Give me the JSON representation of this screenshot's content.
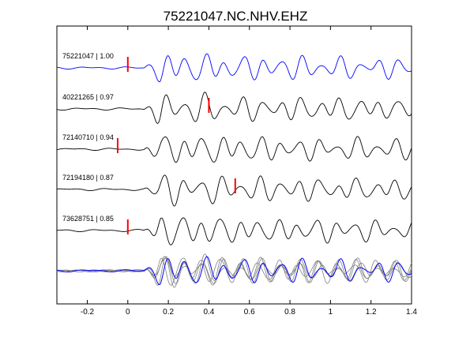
{
  "chart_data": {
    "type": "line",
    "title": "75221047.NC.NHV.EHZ",
    "xlabel": "",
    "ylabel": "",
    "xlim": [
      -0.35,
      1.4
    ],
    "xticks": [
      -0.2,
      0,
      0.2,
      0.4,
      0.6,
      0.8,
      1,
      1.2,
      1.4
    ],
    "xtick_labels": [
      "-0.2",
      "0",
      "0.2",
      "0.4",
      "0.6",
      "0.8",
      "1",
      "1.2",
      "1.4"
    ],
    "grid": false,
    "traces": [
      {
        "label": "75221047 | 1.00",
        "event_id": "75221047",
        "correlation": 1.0,
        "pick_time": 0.0,
        "color": "#0000ff",
        "seed": 1.3
      },
      {
        "label": "40221265 | 0.97",
        "event_id": "40221265",
        "correlation": 0.97,
        "pick_time": 0.4,
        "color": "#000000",
        "seed": 2.1
      },
      {
        "label": "72140710 | 0.94",
        "event_id": "72140710",
        "correlation": 0.94,
        "pick_time": -0.05,
        "color": "#000000",
        "seed": 3.7
      },
      {
        "label": "72194180 | 0.87",
        "event_id": "72194180",
        "correlation": 0.87,
        "pick_time": 0.53,
        "color": "#000000",
        "seed": 4.4
      },
      {
        "label": "73628751 | 0.85",
        "event_id": "73628751",
        "correlation": 0.85,
        "pick_time": 0.0,
        "color": "#000000",
        "seed": 5.9
      }
    ],
    "stack": {
      "overlay_color": "#808080",
      "reference_color": "#0000ff"
    },
    "pick_color": "#ff0000"
  }
}
